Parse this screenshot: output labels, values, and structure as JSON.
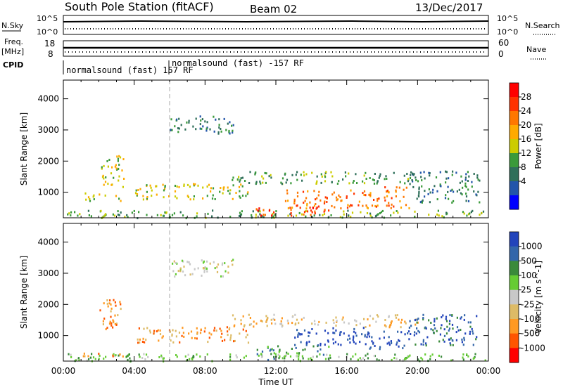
{
  "header": {
    "title": "South Pole Station (fitACF)",
    "beam": "Beam 02",
    "date": "13/Dec/2017"
  },
  "top_panels": {
    "nsky_label": "N.Sky",
    "nsky_ticks": [
      "10^5",
      "10^0"
    ],
    "nsearch_label": "N.Search",
    "nsearch_ticks": [
      "10^5",
      "10^0"
    ],
    "freq_label": "Freq.",
    "freq_unit": "[MHz]",
    "freq_ticks": [
      "18",
      "8"
    ],
    "nave_label": "Nave",
    "nave_ticks": [
      "60",
      "0"
    ],
    "cpid_label": "CPID",
    "cpid_segments": [
      {
        "label": "normalsound (fast) 157 RF",
        "start_hour": 0
      },
      {
        "label": "normalsound (fast) -157 RF",
        "start_hour": 6
      }
    ]
  },
  "chart_data": [
    {
      "type": "heatmap",
      "name": "power",
      "ylabel": "Slant Range [km]",
      "yticks": [
        1000,
        2000,
        3000,
        4000
      ],
      "ylim": [
        180,
        4600
      ],
      "xlim": [
        0,
        24
      ],
      "colorbar": {
        "label": "Power [dB]",
        "ticks": [
          "28",
          "24",
          "20",
          "16",
          "12",
          "8",
          "4"
        ],
        "colors": [
          "#ff0000",
          "#ff3300",
          "#ff7700",
          "#ffaa00",
          "#cccc00",
          "#3a9a3a",
          "#2f6f5a",
          "#2255aa",
          "#0000ff"
        ]
      },
      "echo_regions": [
        {
          "t0": 0.2,
          "t1": 23.8,
          "r0": 200,
          "r1": 450,
          "level": 5
        },
        {
          "t0": 1.2,
          "t1": 3.2,
          "r0": 750,
          "r1": 1000,
          "level": 4
        },
        {
          "t0": 2.0,
          "t1": 3.4,
          "r0": 1200,
          "r1": 2200,
          "level": 4
        },
        {
          "t0": 6.0,
          "t1": 9.6,
          "r0": 2900,
          "r1": 3500,
          "level": 6
        },
        {
          "t0": 4.0,
          "t1": 10.5,
          "r0": 800,
          "r1": 1300,
          "level": 4
        },
        {
          "t0": 10.8,
          "t1": 15.0,
          "r0": 250,
          "r1": 550,
          "level": 1
        },
        {
          "t0": 12.5,
          "t1": 17.0,
          "r0": 500,
          "r1": 1100,
          "level": 2
        },
        {
          "t0": 17.0,
          "t1": 19.5,
          "r0": 500,
          "r1": 1200,
          "level": 2
        },
        {
          "t0": 9.5,
          "t1": 20.0,
          "r0": 1300,
          "r1": 1700,
          "level": 5
        },
        {
          "t0": 19.5,
          "t1": 23.5,
          "r0": 700,
          "r1": 1700,
          "level": 6
        }
      ]
    },
    {
      "type": "heatmap",
      "name": "velocity",
      "xlabel": "Time UT",
      "ylabel": "Slant Range [km]",
      "yticks": [
        1000,
        2000,
        3000,
        4000
      ],
      "ylim": [
        180,
        4600
      ],
      "xticks": [
        "00:00",
        "04:00",
        "08:00",
        "12:00",
        "16:00",
        "20:00",
        "00:00"
      ],
      "xlim": [
        0,
        24
      ],
      "colorbar": {
        "label": "Velocity [m s^-1]",
        "ticks": [
          "1000",
          "500",
          "100",
          "25",
          "-25",
          "-100",
          "-500",
          "-1000"
        ],
        "colors": [
          "#2244bb",
          "#3366aa",
          "#3a8a3a",
          "#66cc33",
          "#c8c8c8",
          "#ddbb66",
          "#ff9922",
          "#ff5500",
          "#ff0000"
        ]
      },
      "echo_regions": [
        {
          "t0": 0.2,
          "t1": 23.8,
          "r0": 200,
          "r1": 450,
          "level": 3
        },
        {
          "t0": 1.0,
          "t1": 3.4,
          "r0": 350,
          "r1": 500,
          "level": 6
        },
        {
          "t0": 2.0,
          "t1": 3.4,
          "r0": 1200,
          "r1": 2200,
          "level": 6
        },
        {
          "t0": 6.0,
          "t1": 9.6,
          "r0": 2900,
          "r1": 3500,
          "level": 4
        },
        {
          "t0": 4.0,
          "t1": 10.5,
          "r0": 800,
          "r1": 1300,
          "level": 6
        },
        {
          "t0": 10.8,
          "t1": 15.0,
          "r0": 250,
          "r1": 700,
          "level": 2
        },
        {
          "t0": 13.0,
          "t1": 17.0,
          "r0": 700,
          "r1": 1300,
          "level": 0
        },
        {
          "t0": 17.0,
          "t1": 19.5,
          "r0": 600,
          "r1": 1200,
          "level": 0
        },
        {
          "t0": 9.5,
          "t1": 20.0,
          "r0": 1300,
          "r1": 1700,
          "level": 5
        },
        {
          "t0": 19.5,
          "t1": 23.5,
          "r0": 700,
          "r1": 1700,
          "level": 1
        }
      ]
    }
  ]
}
